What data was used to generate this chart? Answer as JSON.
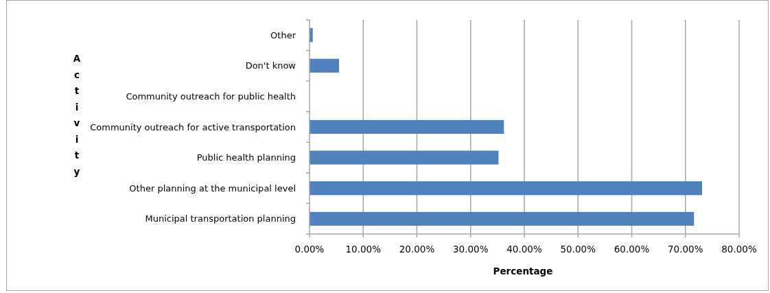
{
  "chart_data": {
    "type": "bar",
    "orientation": "horizontal",
    "xlabel": "Percentage",
    "ylabel": "Activity",
    "categories": [
      "Other",
      "Don't know",
      "Community outreach for public health",
      "Community outreach for active transportation",
      "Public health planning",
      "Other planning at the municipal level",
      "Municipal transportation planning"
    ],
    "values": [
      0.6,
      5.5,
      0,
      36.2,
      35.2,
      73.1,
      71.6
    ],
    "color": "#4f81bd",
    "xlim": [
      0,
      80
    ],
    "xticks": [
      {
        "value": 0,
        "label": "0.00%"
      },
      {
        "value": 10,
        "label": "10.00%"
      },
      {
        "value": 20,
        "label": "20.00%"
      },
      {
        "value": 30,
        "label": "30.00%"
      },
      {
        "value": 40,
        "label": "40.00%"
      },
      {
        "value": 50,
        "label": "50.00%"
      },
      {
        "value": 60,
        "label": "60.00%"
      },
      {
        "value": 70,
        "label": "70.00%"
      },
      {
        "value": 80,
        "label": "80.00%"
      }
    ],
    "grid": "x"
  }
}
